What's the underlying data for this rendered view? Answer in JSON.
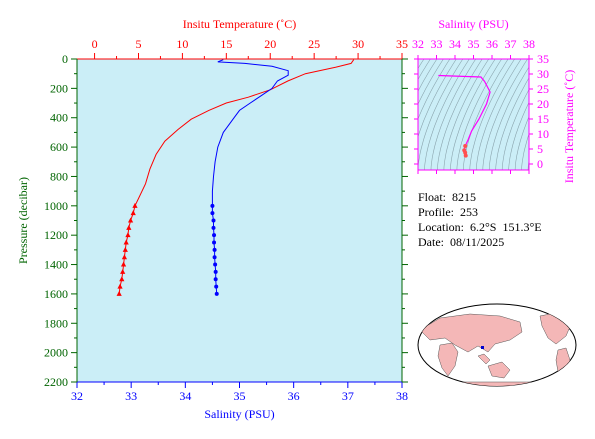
{
  "colors": {
    "temperature": "#ff0000",
    "salinity": "#0000ff",
    "pressure_axis": "#006400",
    "ts_axis": "#ff00ff",
    "plot_bg": "#cbeef7",
    "land": "#f4b7b7",
    "ocean": "#ffffff"
  },
  "info": {
    "float": "Float:  8215",
    "profile": "Profile:  253",
    "location": "Location:  6.2°S  151.3°E",
    "date": "Date:  08/11/2025"
  },
  "chart_data": [
    {
      "type": "line",
      "title": "",
      "grid": false,
      "y_axis": {
        "label": "Pressure (decibar)",
        "range": [
          2200,
          0
        ],
        "ticks": [
          0,
          200,
          400,
          600,
          800,
          1000,
          1200,
          1400,
          1600,
          1800,
          2000,
          2200
        ],
        "tick_labels": [
          "0",
          "200",
          "400",
          "600",
          "800",
          "1000",
          "1200",
          "1400",
          "1600",
          "1800",
          "2000",
          "2200"
        ]
      },
      "x_axes": [
        {
          "position": "top",
          "label": "Insitu Temperature (˚C)",
          "range": [
            -2,
            35
          ],
          "ticks": [
            0,
            5,
            10,
            15,
            20,
            25,
            30,
            35
          ],
          "tick_labels": [
            "0",
            "5",
            "10",
            "15",
            "20",
            "25",
            "30",
            "35"
          ]
        },
        {
          "position": "bottom",
          "label": "Salinity (PSU)",
          "range": [
            32,
            38
          ],
          "ticks": [
            32,
            33,
            34,
            35,
            36,
            37,
            38
          ],
          "tick_labels": [
            "32",
            "33",
            "34",
            "35",
            "36",
            "37",
            "38"
          ]
        }
      ],
      "series": [
        {
          "name": "",
          "axis": "top",
          "color_key": "temperature",
          "points": [
            [
              29.5,
              5
            ],
            [
              29.2,
              30
            ],
            [
              27.5,
              55
            ],
            [
              24.0,
              100
            ],
            [
              22.0,
              150
            ],
            [
              20.0,
              210
            ],
            [
              17.5,
              260
            ],
            [
              15.0,
              300
            ],
            [
              13.0,
              350
            ],
            [
              11.0,
              410
            ],
            [
              9.5,
              480
            ],
            [
              8.0,
              560
            ],
            [
              7.0,
              650
            ],
            [
              6.3,
              750
            ],
            [
              5.8,
              850
            ],
            [
              5.0,
              950
            ],
            [
              4.6,
              1000
            ],
            [
              4.4,
              1050
            ],
            [
              4.1,
              1100
            ],
            [
              3.9,
              1150
            ],
            [
              3.8,
              1200
            ],
            [
              3.6,
              1250
            ],
            [
              3.5,
              1300
            ],
            [
              3.4,
              1350
            ],
            [
              3.3,
              1400
            ],
            [
              3.2,
              1450
            ],
            [
              3.1,
              1500
            ],
            [
              2.9,
              1550
            ],
            [
              2.8,
              1600
            ]
          ],
          "markers_from_pressure": 1000
        },
        {
          "name": "",
          "axis": "bottom",
          "color_key": "salinity",
          "points": [
            [
              34.7,
              5
            ],
            [
              34.6,
              20
            ],
            [
              35.1,
              30
            ],
            [
              35.6,
              50
            ],
            [
              35.9,
              80
            ],
            [
              35.9,
              110
            ],
            [
              35.7,
              150
            ],
            [
              35.6,
              200
            ],
            [
              35.4,
              250
            ],
            [
              35.2,
              300
            ],
            [
              35.0,
              350
            ],
            [
              34.9,
              400
            ],
            [
              34.8,
              450
            ],
            [
              34.7,
              500
            ],
            [
              34.6,
              600
            ],
            [
              34.55,
              700
            ],
            [
              34.52,
              800
            ],
            [
              34.5,
              900
            ],
            [
              34.5,
              1000
            ],
            [
              34.5,
              1050
            ],
            [
              34.52,
              1100
            ],
            [
              34.52,
              1150
            ],
            [
              34.53,
              1200
            ],
            [
              34.53,
              1250
            ],
            [
              34.54,
              1300
            ],
            [
              34.54,
              1350
            ],
            [
              34.55,
              1400
            ],
            [
              34.56,
              1450
            ],
            [
              34.56,
              1500
            ],
            [
              34.57,
              1550
            ],
            [
              34.58,
              1600
            ]
          ],
          "markers_from_pressure": 1000
        }
      ]
    },
    {
      "type": "scatter",
      "title": "",
      "x_axis": {
        "label": "Salinity (PSU)",
        "position": "top",
        "range": [
          32,
          38
        ],
        "ticks": [
          32,
          33,
          34,
          35,
          36,
          37,
          38
        ],
        "tick_labels": [
          "32",
          "33",
          "34",
          "35",
          "36",
          "37",
          "38"
        ]
      },
      "y_axis": {
        "label": "Insitu Temperature (˚C)",
        "position": "right",
        "range": [
          -2,
          35
        ],
        "ticks": [
          0,
          5,
          10,
          15,
          20,
          25,
          30,
          35
        ],
        "tick_labels": [
          "0",
          "5",
          "10",
          "15",
          "20",
          "25",
          "30",
          "35"
        ]
      },
      "density_contours": true,
      "series": [
        {
          "name": "",
          "color_key": "ts_axis",
          "points": [
            [
              33.1,
              29.5
            ],
            [
              35.4,
              29.0
            ],
            [
              35.6,
              27.5
            ],
            [
              35.9,
              24.0
            ],
            [
              35.7,
              20.0
            ],
            [
              35.3,
              15.0
            ],
            [
              34.9,
              11.0
            ],
            [
              34.7,
              8.0
            ],
            [
              34.55,
              6.0
            ],
            [
              34.5,
              4.6
            ],
            [
              34.55,
              3.8
            ],
            [
              34.58,
              2.8
            ]
          ]
        }
      ]
    }
  ]
}
